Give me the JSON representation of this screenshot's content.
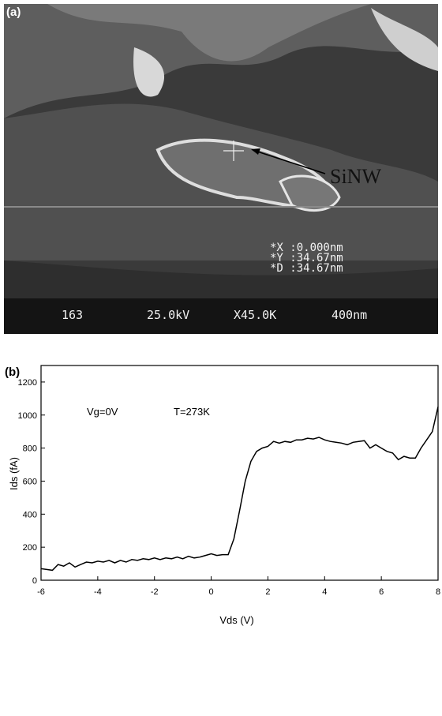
{
  "image_panel": {
    "label": "(a)",
    "annotation": "SiNW",
    "readout": [
      "*X :0.000nm",
      "*Y :34.67nm",
      "*D :34.67nm"
    ],
    "footer": [
      "163",
      "25.0kV",
      "X45.0K",
      "400nm"
    ]
  },
  "chart_data": {
    "type": "line",
    "panel_label": "(b)",
    "x_label": "Vds (V)",
    "y_label": "Ids (fA)",
    "annotations": [
      "Vg=0V",
      "T=273K"
    ],
    "color": "#000000",
    "xlim": [
      -6,
      8
    ],
    "ylim": [
      0,
      1300
    ],
    "xticks": [
      -6,
      -4,
      -2,
      0,
      2,
      4,
      6,
      8
    ],
    "yticks": [
      0,
      200,
      400,
      600,
      800,
      1000,
      1200
    ],
    "x": [
      -6,
      -5.8,
      -5.6,
      -5.4,
      -5.2,
      -5,
      -4.8,
      -4.6,
      -4.4,
      -4.2,
      -4,
      -3.8,
      -3.6,
      -3.4,
      -3.2,
      -3,
      -2.8,
      -2.6,
      -2.4,
      -2.2,
      -2,
      -1.8,
      -1.6,
      -1.4,
      -1.2,
      -1,
      -0.8,
      -0.6,
      -0.4,
      -0.2,
      0,
      0.2,
      0.4,
      0.6,
      0.8,
      1,
      1.2,
      1.4,
      1.6,
      1.8,
      2,
      2.2,
      2.4,
      2.6,
      2.8,
      3,
      3.2,
      3.4,
      3.6,
      3.8,
      4,
      4.2,
      4.4,
      4.6,
      4.8,
      5,
      5.2,
      5.4,
      5.6,
      5.8,
      6,
      6.2,
      6.4,
      6.6,
      6.8,
      7,
      7.2,
      7.4,
      7.6,
      7.8,
      8
    ],
    "values": [
      70,
      65,
      60,
      95,
      85,
      105,
      80,
      95,
      110,
      105,
      115,
      110,
      120,
      105,
      120,
      110,
      125,
      120,
      130,
      125,
      135,
      125,
      135,
      130,
      140,
      130,
      145,
      135,
      140,
      150,
      160,
      150,
      155,
      155,
      250,
      420,
      600,
      720,
      780,
      800,
      810,
      840,
      830,
      840,
      835,
      850,
      850,
      860,
      855,
      865,
      850,
      840,
      835,
      830,
      820,
      835,
      840,
      845,
      800,
      820,
      800,
      780,
      770,
      730,
      750,
      740,
      740,
      800,
      850,
      900,
      1050
    ]
  }
}
